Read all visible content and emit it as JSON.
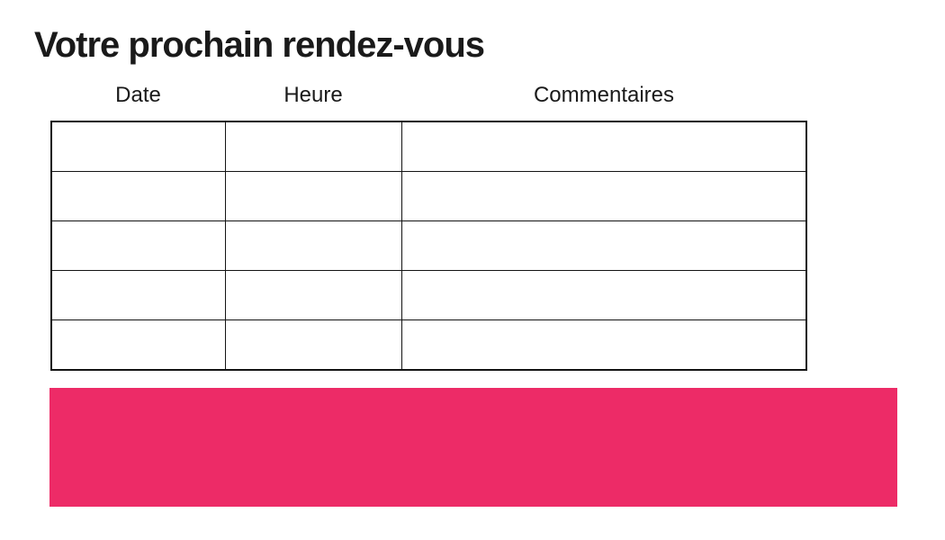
{
  "page": {
    "title": "Votre prochain rendez-vous"
  },
  "table": {
    "columns": [
      {
        "label": "Date"
      },
      {
        "label": "Heure"
      },
      {
        "label": "Commentaires"
      }
    ],
    "rows": [
      [
        "",
        "",
        ""
      ],
      [
        "",
        "",
        ""
      ],
      [
        "",
        "",
        ""
      ],
      [
        "",
        "",
        ""
      ],
      [
        "",
        "",
        ""
      ]
    ]
  },
  "banner": {
    "text": "",
    "color": "#ED2B67"
  },
  "colors": {
    "text": "#1a1a1a",
    "table_border": "#141414",
    "accent_pink": "#ED2B67",
    "background": "#ffffff"
  }
}
